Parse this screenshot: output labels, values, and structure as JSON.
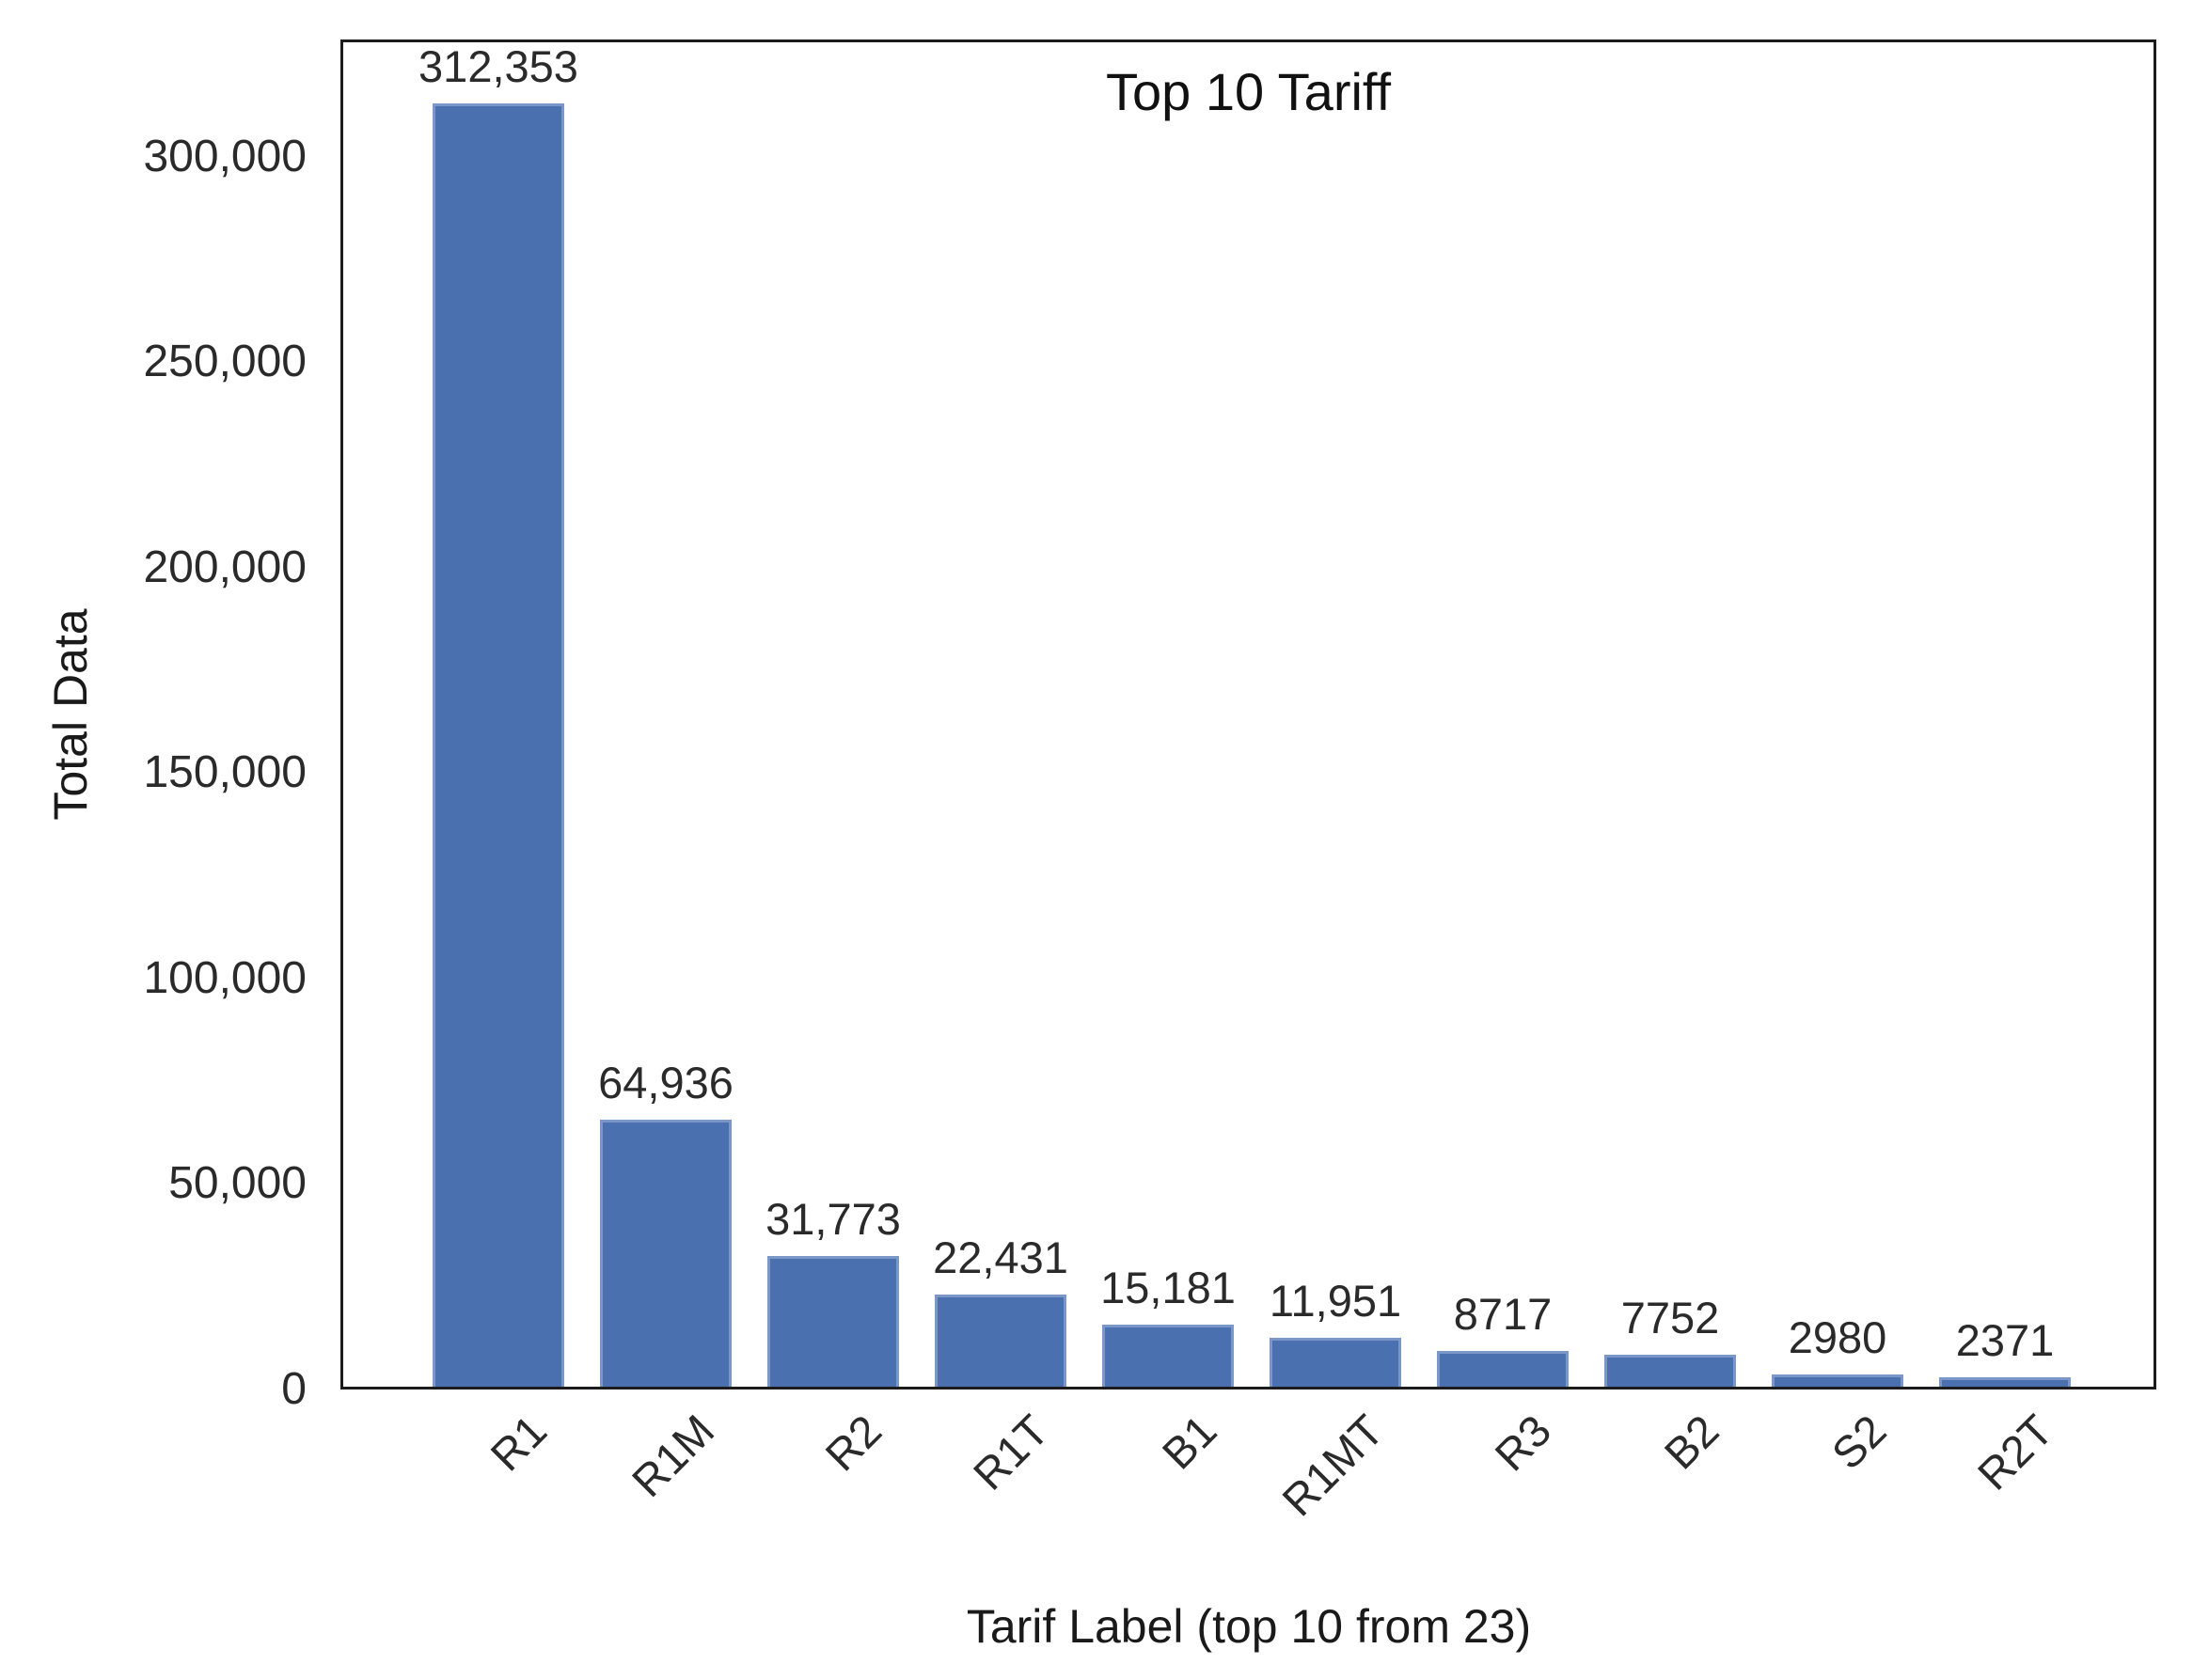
{
  "chart_data": {
    "type": "bar",
    "title": "Top 10 Tariff",
    "xlabel": "Tarif Label (top 10 from 23)",
    "ylabel": "Total Data",
    "categories": [
      "R1",
      "R1M",
      "R2",
      "R1T",
      "B1",
      "R1MT",
      "R3",
      "B2",
      "S2",
      "R2T"
    ],
    "values": [
      312353,
      64936,
      31773,
      22431,
      15181,
      11951,
      8717,
      7752,
      2980,
      2371
    ],
    "value_labels": [
      "312,353",
      "64,936",
      "31,773",
      "22,431",
      "15,181",
      "11,951",
      "8717",
      "7752",
      "2980",
      "2371"
    ],
    "ytick_values": [
      0,
      50000,
      100000,
      150000,
      200000,
      250000,
      300000
    ],
    "ytick_labels": [
      "0",
      "50,000",
      "100,000",
      "150,000",
      "200,000",
      "250,000",
      "300,000"
    ],
    "ylim": [
      0,
      328600
    ],
    "grid": false,
    "legend": false,
    "bar_color": "#4c72b0"
  },
  "colors": {
    "bar_fill": "#4a70af",
    "bar_edge": "#7b97c7",
    "plot_border": "#1c1c1c",
    "text": "#2a2a2a",
    "background": "#ffffff"
  }
}
